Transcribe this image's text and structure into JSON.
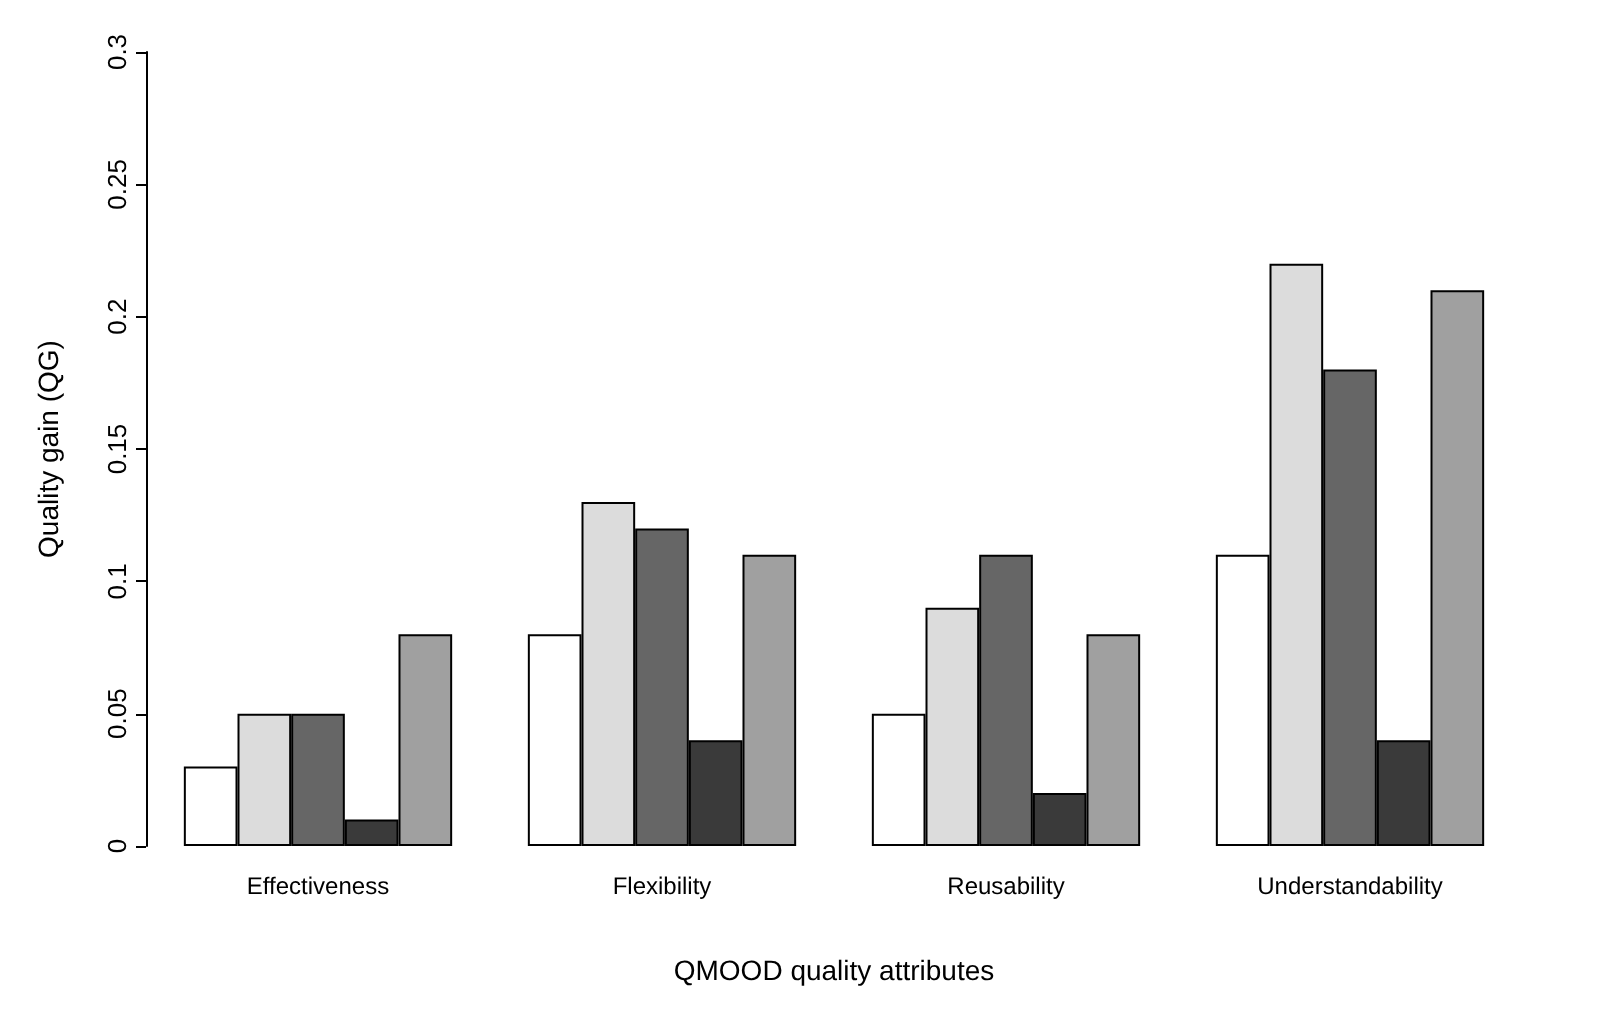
{
  "chart_data": {
    "type": "bar",
    "xlabel": "QMOOD quality attributes",
    "ylabel": "Quality gain (QG)",
    "categories": [
      "Effectiveness",
      "Flexibility",
      "Reusability",
      "Understandability"
    ],
    "series": [
      {
        "color": "#ffffff",
        "values": [
          0.03,
          0.08,
          0.05,
          0.11
        ]
      },
      {
        "color": "#dcdcdc",
        "values": [
          0.05,
          0.13,
          0.09,
          0.22
        ]
      },
      {
        "color": "#666666",
        "values": [
          0.05,
          0.12,
          0.11,
          0.18
        ]
      },
      {
        "color": "#3a3a3a",
        "values": [
          0.01,
          0.04,
          0.02,
          0.04
        ]
      },
      {
        "color": "#a0a0a0",
        "values": [
          0.08,
          0.11,
          0.08,
          0.21
        ]
      }
    ],
    "ylim": [
      0,
      0.3
    ],
    "yticks": [
      0,
      0.05,
      0.1,
      0.15,
      0.2,
      0.25,
      0.3
    ],
    "grid": false
  }
}
